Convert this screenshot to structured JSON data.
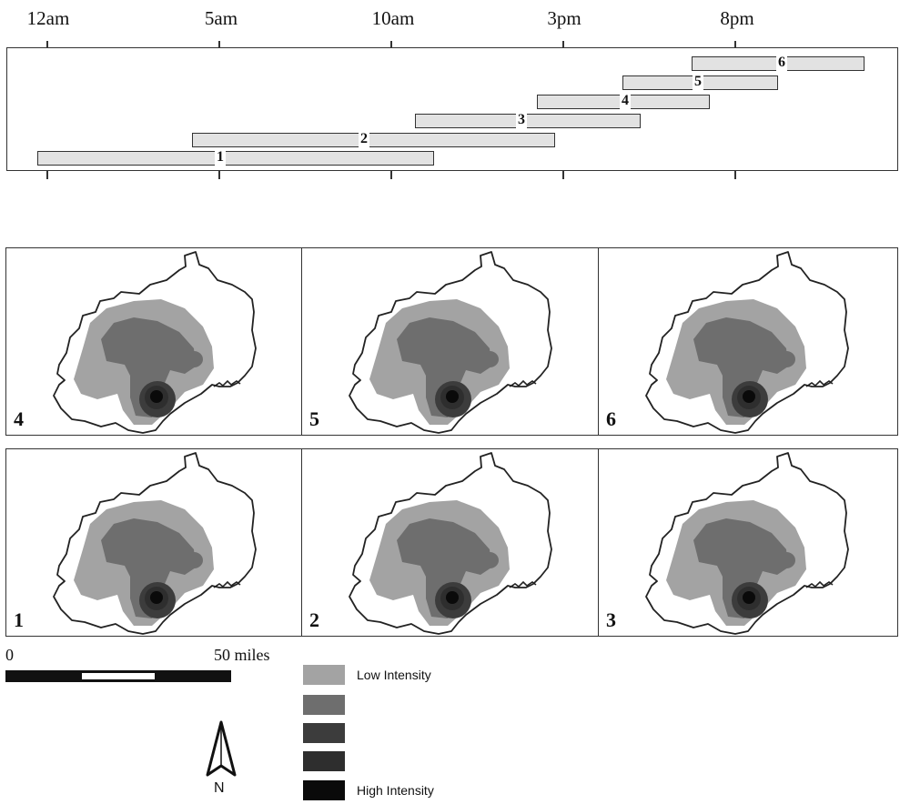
{
  "timeline": {
    "axis_labels": [
      "12am",
      "5am",
      "10am",
      "3pm",
      "8pm"
    ],
    "periods": [
      {
        "label": "1",
        "start": "12am",
        "end": "11:30am"
      },
      {
        "label": "2",
        "start": "4:30am",
        "end": "3pm"
      },
      {
        "label": "3",
        "start": "10:30am",
        "end": "5pm"
      },
      {
        "label": "4",
        "start": "2pm",
        "end": "7pm"
      },
      {
        "label": "5",
        "start": "4:30pm",
        "end": "9pm"
      },
      {
        "label": "6",
        "start": "7pm",
        "end": "12am"
      }
    ]
  },
  "maps": {
    "top_row": [
      {
        "label": "4"
      },
      {
        "label": "5"
      },
      {
        "label": "6"
      }
    ],
    "bottom_row": [
      {
        "label": "1"
      },
      {
        "label": "2"
      },
      {
        "label": "3"
      }
    ]
  },
  "scale_bar": {
    "start_label": "0",
    "end_label": "50 miles"
  },
  "legend": {
    "items": [
      {
        "label": "Low Intensity",
        "color": "#a3a3a3"
      },
      {
        "label": "",
        "color": "#6e6e6e"
      },
      {
        "label": "",
        "color": "#3c3c3c"
      },
      {
        "label": "",
        "color": "#2e2e2e"
      },
      {
        "label": "High Intensity",
        "color": "#0a0a0a"
      }
    ]
  },
  "north_arrow": {
    "label": "N"
  }
}
